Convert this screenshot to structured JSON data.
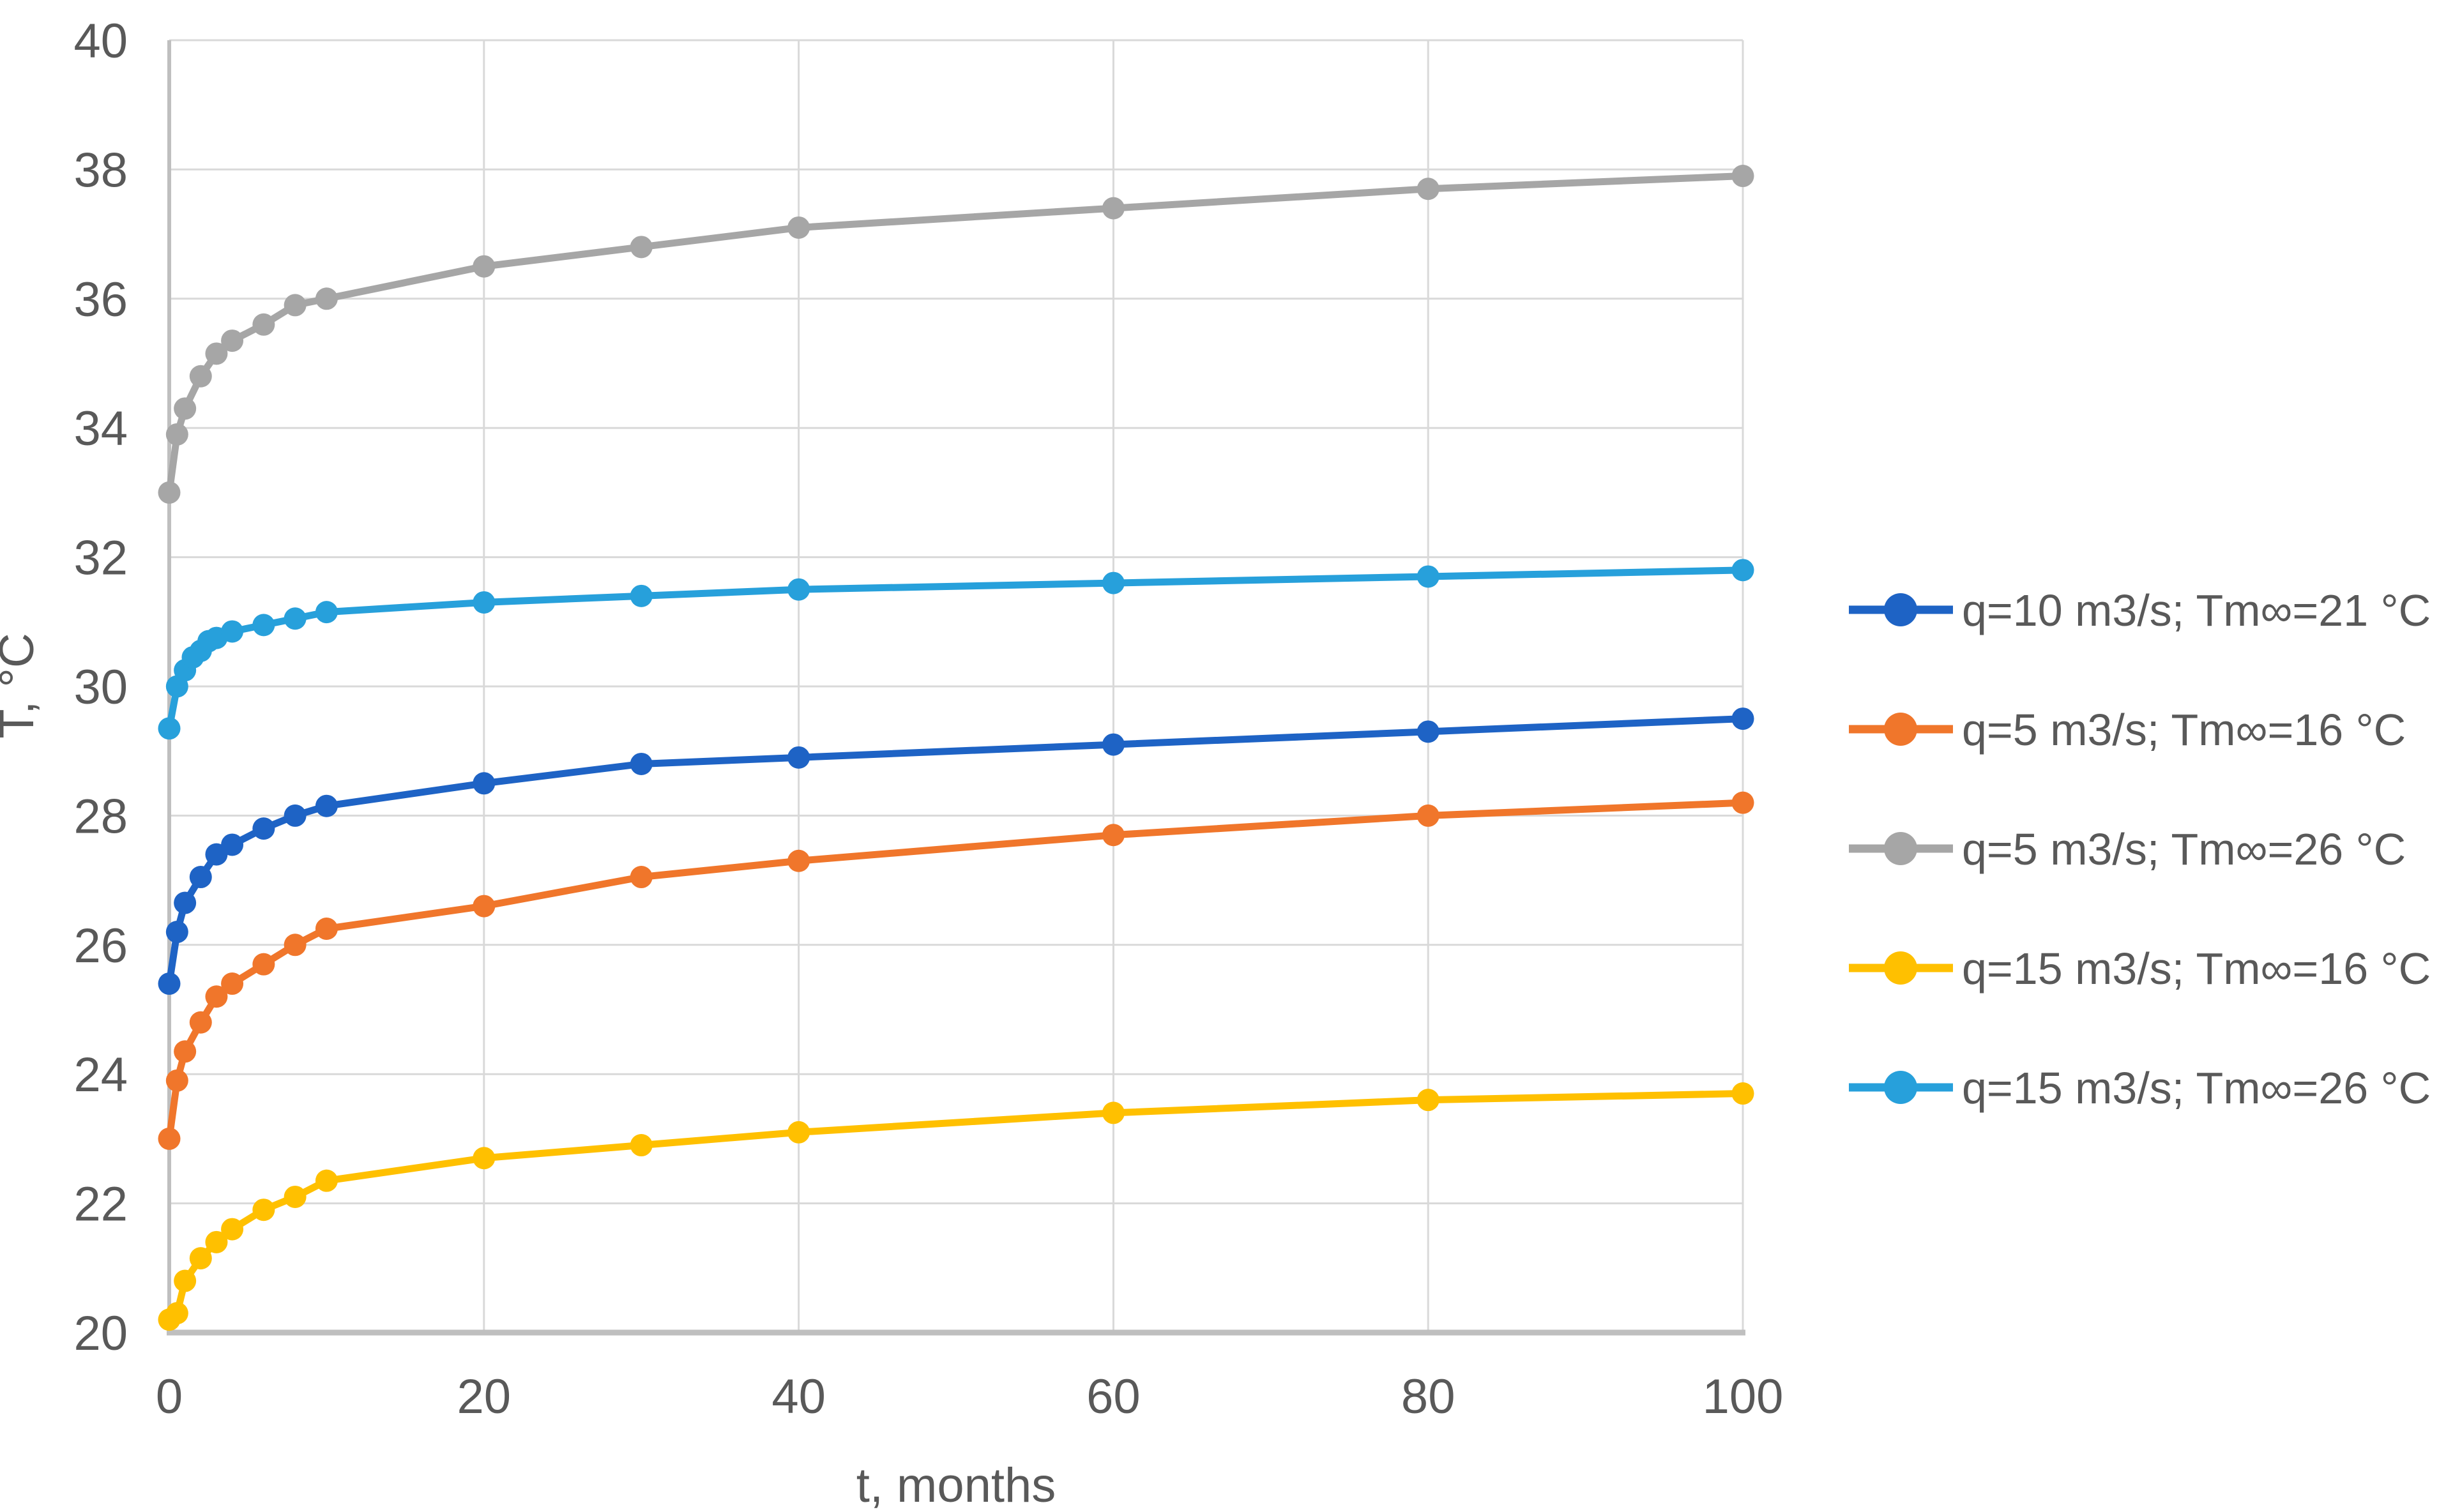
{
  "chart_data": {
    "type": "line",
    "title": "",
    "xlabel": "t, months",
    "ylabel": "T, °C",
    "xlim": [
      0,
      100
    ],
    "ylim": [
      20,
      40
    ],
    "x_ticks": [
      0,
      20,
      40,
      60,
      80,
      100
    ],
    "y_ticks": [
      40,
      38,
      36,
      34,
      32,
      30,
      28,
      26,
      24,
      22,
      20
    ],
    "grid": true,
    "legend_position": "right",
    "marker": "circle",
    "series": [
      {
        "name": "q=10 m3/s; Tm∞=21 °C",
        "color": "#1E63C5",
        "x": [
          0,
          0.5,
          1,
          2,
          3,
          4,
          6,
          8,
          10,
          20,
          30,
          40,
          60,
          80,
          100
        ],
        "y": [
          25.4,
          26.2,
          26.65,
          27.05,
          27.4,
          27.55,
          27.8,
          28.0,
          28.15,
          28.5,
          28.8,
          28.9,
          29.1,
          29.3,
          29.5
        ]
      },
      {
        "name": "q=5 m3/s; Tm∞=16 °C",
        "color": "#F0762B",
        "x": [
          0,
          0.5,
          1,
          2,
          3,
          4,
          6,
          8,
          10,
          20,
          30,
          40,
          60,
          80,
          100
        ],
        "y": [
          23.0,
          23.9,
          24.35,
          24.8,
          25.2,
          25.4,
          25.7,
          26.0,
          26.25,
          26.6,
          27.05,
          27.3,
          27.7,
          28.0,
          28.2
        ]
      },
      {
        "name": "q=5 m3/s; Tm∞=26 °C",
        "color": "#A6A6A6",
        "x": [
          0,
          0.5,
          1,
          2,
          3,
          4,
          6,
          8,
          10,
          20,
          30,
          40,
          60,
          80,
          100
        ],
        "y": [
          33.0,
          33.9,
          34.3,
          34.8,
          35.15,
          35.35,
          35.6,
          35.9,
          36.0,
          36.5,
          36.8,
          37.1,
          37.4,
          37.7,
          37.9
        ]
      },
      {
        "name": "q=15 m3/s; Tm∞=16 °C",
        "color": "#FFC000",
        "x": [
          0,
          0.5,
          1,
          2,
          3,
          4,
          6,
          8,
          10,
          20,
          30,
          40,
          60,
          80,
          100
        ],
        "y": [
          20.2,
          20.3,
          20.8,
          21.15,
          21.4,
          21.6,
          21.9,
          22.1,
          22.35,
          22.7,
          22.9,
          23.1,
          23.4,
          23.6,
          23.7
        ]
      },
      {
        "name": "q=15 m3/s; Tm∞=26 °C",
        "color": "#27A0DB",
        "x": [
          0,
          0.5,
          1,
          1.5,
          2,
          2.5,
          3,
          4,
          6,
          8,
          10,
          20,
          30,
          40,
          60,
          80,
          100
        ],
        "y": [
          29.35,
          30.0,
          30.25,
          30.45,
          30.55,
          30.7,
          30.75,
          30.85,
          30.95,
          31.05,
          31.15,
          31.3,
          31.4,
          31.5,
          31.6,
          31.7,
          31.8
        ]
      }
    ]
  },
  "palette": {
    "text": "#595959",
    "gridline": "#D9D9D9",
    "axis": "#BFBFBF",
    "background": "#FFFFFF"
  }
}
